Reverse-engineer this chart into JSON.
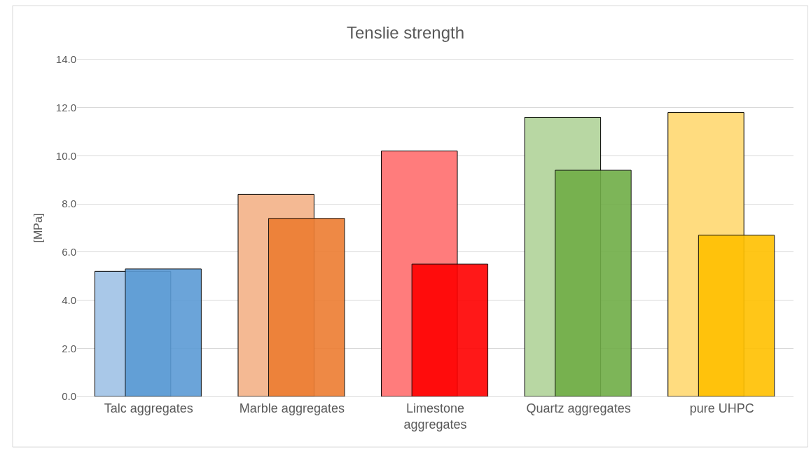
{
  "chart_data": {
    "type": "bar",
    "title": "Tenslie strength",
    "ylabel": "[MPa]",
    "categories": [
      "Talc aggregates",
      "Marble aggregates",
      "Limestone aggregates",
      "Quartz aggregates",
      "pure UHPC"
    ],
    "series": [
      {
        "colors": [
          "#a9c8e8",
          "#f4b993",
          "#ff7c7c",
          "#b8d7a3",
          "#ffdc7f"
        ],
        "values": [
          5.2,
          8.4,
          10.2,
          11.6,
          11.8
        ]
      },
      {
        "colors": [
          "#5b9bd5",
          "#ed7d31",
          "#ff0000",
          "#70ad47",
          "#ffc000"
        ],
        "values": [
          5.3,
          7.4,
          5.5,
          9.4,
          6.7
        ]
      }
    ],
    "ylim": [
      0,
      14
    ],
    "yticks": [
      {
        "value": 0,
        "label": "0.0"
      },
      {
        "value": 2,
        "label": "2.0"
      },
      {
        "value": 4,
        "label": "4.0"
      },
      {
        "value": 6,
        "label": "6.0"
      },
      {
        "value": 8,
        "label": "8.0"
      },
      {
        "value": 10,
        "label": "10.0"
      },
      {
        "value": 12,
        "label": "12.0"
      },
      {
        "value": 14,
        "label": "14.0"
      }
    ],
    "grid": "y"
  }
}
